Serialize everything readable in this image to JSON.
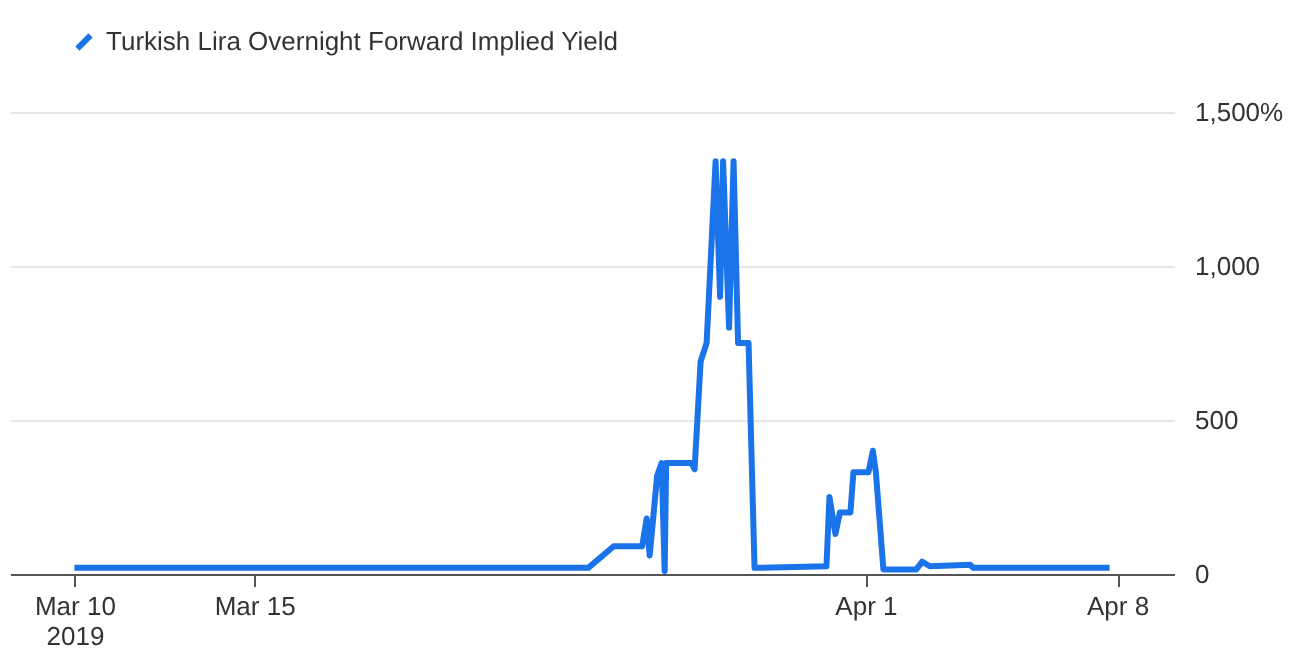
{
  "chart_data": {
    "type": "line",
    "x": [
      "2019-03-10T00:00",
      "2019-03-24T07:00",
      "2019-03-25T00:00",
      "2019-03-25T19:00",
      "2019-03-25T22:00",
      "2019-03-26T00:00",
      "2019-03-26T05:00",
      "2019-03-26T08:00",
      "2019-03-26T10:00",
      "2019-03-26T11:00",
      "2019-03-27T04:00",
      "2019-03-27T06:00",
      "2019-03-27T10:00",
      "2019-03-27T14:00",
      "2019-03-27T20:00",
      "2019-03-27T23:00",
      "2019-03-28T01:00",
      "2019-03-28T05:00",
      "2019-03-28T08:00",
      "2019-03-28T11:00",
      "2019-03-28T18:00",
      "2019-03-28T22:00",
      "2019-03-30T22:00",
      "2019-03-31T00:00",
      "2019-03-31T04:00",
      "2019-03-31T07:00",
      "2019-03-31T14:00",
      "2019-03-31T16:00",
      "2019-04-01T02:00",
      "2019-04-01T05:00",
      "2019-04-01T07:00",
      "2019-04-01T12:00",
      "2019-04-02T10:00",
      "2019-04-02T14:00",
      "2019-04-02T19:00",
      "2019-04-03T22:00",
      "2019-04-04T00:00",
      "2019-04-07T19:00"
    ],
    "series": [
      {
        "name": "Turkish Lira Overnight Forward Implied Yield",
        "color": "#1a73e8",
        "values": [
          20,
          20,
          90,
          90,
          180,
          60,
          320,
          360,
          10,
          360,
          360,
          340,
          690,
          750,
          1340,
          900,
          1340,
          800,
          1340,
          750,
          750,
          20,
          25,
          250,
          130,
          200,
          200,
          330,
          330,
          400,
          330,
          15,
          15,
          40,
          25,
          30,
          20,
          20
        ]
      }
    ],
    "xlim": [
      "2019-03-08T05:00",
      "2019-04-09T14:00"
    ],
    "xticks": [
      {
        "value": "2019-03-10",
        "label": "Mar 10\n2019"
      },
      {
        "value": "2019-03-15",
        "label": "Mar 15"
      },
      {
        "value": "2019-04-01",
        "label": "Apr 1"
      },
      {
        "value": "2019-04-08",
        "label": "Apr 8"
      }
    ],
    "ylim": [
      0,
      1500
    ],
    "yticks": [
      0,
      500,
      {
        "value": 1000,
        "label": "1,000"
      },
      {
        "value": 1500,
        "label": "1,500%"
      }
    ],
    "grid": "y",
    "legend": "top left",
    "line_style": "solid",
    "marker": "none"
  }
}
